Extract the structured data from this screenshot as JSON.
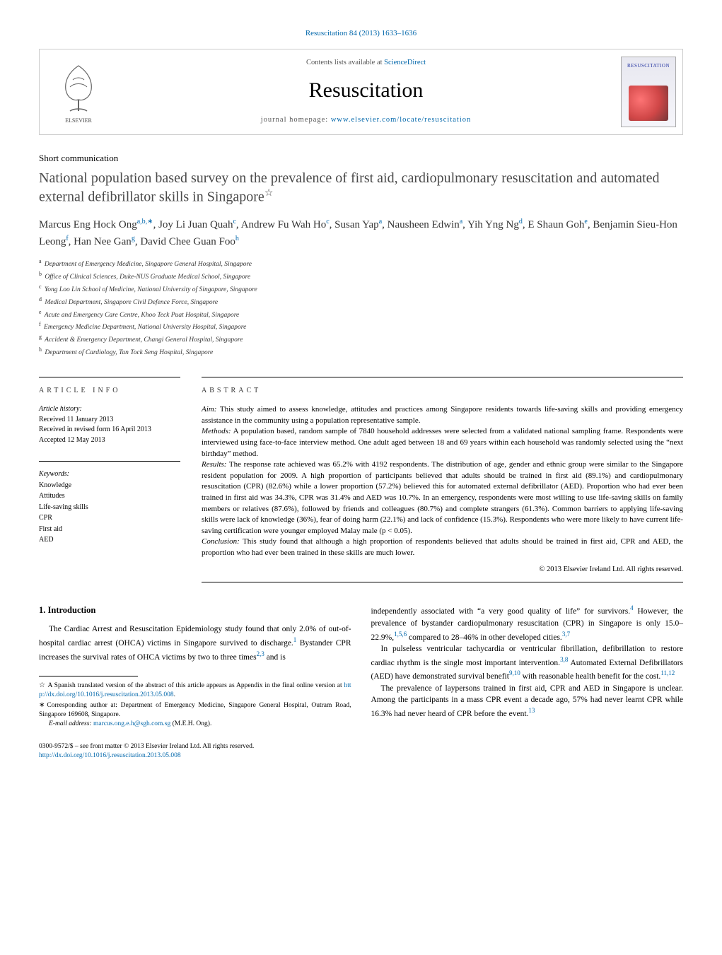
{
  "journal_ref": "Resuscitation 84 (2013) 1633–1636",
  "header": {
    "contents_prefix": "Contents lists available at ",
    "contents_link": "ScienceDirect",
    "journal_title": "Resuscitation",
    "homepage_prefix": "journal homepage: ",
    "homepage_link": "www.elsevier.com/locate/resuscitation",
    "cover_label": "RESUSCITATION"
  },
  "article_type": "Short communication",
  "title": "National population based survey on the prevalence of first aid, cardiopulmonary resuscitation and automated external defibrillator skills in Singapore",
  "title_star": "☆",
  "authors_html_parts": [
    {
      "name": "Marcus Eng Hock Ong",
      "sup": "a,b,∗"
    },
    {
      "name": "Joy Li Juan Quah",
      "sup": "c"
    },
    {
      "name": "Andrew Fu Wah Ho",
      "sup": "c"
    },
    {
      "name": "Susan Yap",
      "sup": "a"
    },
    {
      "name": "Nausheen Edwin",
      "sup": "a"
    },
    {
      "name": "Yih Yng Ng",
      "sup": "d"
    },
    {
      "name": "E Shaun Goh",
      "sup": "e"
    },
    {
      "name": "Benjamin Sieu-Hon Leong",
      "sup": "f"
    },
    {
      "name": "Han Nee Gan",
      "sup": "g"
    },
    {
      "name": "David Chee Guan Foo",
      "sup": "h"
    }
  ],
  "affiliations": [
    {
      "key": "a",
      "text": "Department of Emergency Medicine, Singapore General Hospital, Singapore"
    },
    {
      "key": "b",
      "text": "Office of Clinical Sciences, Duke-NUS Graduate Medical School, Singapore"
    },
    {
      "key": "c",
      "text": "Yong Loo Lin School of Medicine, National University of Singapore, Singapore"
    },
    {
      "key": "d",
      "text": "Medical Department, Singapore Civil Defence Force, Singapore"
    },
    {
      "key": "e",
      "text": "Acute and Emergency Care Centre, Khoo Teck Puat Hospital, Singapore"
    },
    {
      "key": "f",
      "text": "Emergency Medicine Department, National University Hospital, Singapore"
    },
    {
      "key": "g",
      "text": "Accident & Emergency Department, Changi General Hospital, Singapore"
    },
    {
      "key": "h",
      "text": "Department of Cardiology, Tan Tock Seng Hospital, Singapore"
    }
  ],
  "info": {
    "heading": "article info",
    "history_label": "Article history:",
    "received": "Received 11 January 2013",
    "revised": "Received in revised form 16 April 2013",
    "accepted": "Accepted 12 May 2013",
    "keywords_label": "Keywords:",
    "keywords": [
      "Knowledge",
      "Attitudes",
      "Life-saving skills",
      "CPR",
      "First aid",
      "AED"
    ]
  },
  "abstract": {
    "heading": "abstract",
    "paras": [
      {
        "label": "Aim:",
        "text": " This study aimed to assess knowledge, attitudes and practices among Singapore residents towards life-saving skills and providing emergency assistance in the community using a population representative sample."
      },
      {
        "label": "Methods:",
        "text": " A population based, random sample of 7840 household addresses were selected from a validated national sampling frame. Respondents were interviewed using face-to-face interview method. One adult aged between 18 and 69 years within each household was randomly selected using the “next birthday” method."
      },
      {
        "label": "Results:",
        "text": " The response rate achieved was 65.2% with 4192 respondents. The distribution of age, gender and ethnic group were similar to the Singapore resident population for 2009. A high proportion of participants believed that adults should be trained in first aid (89.1%) and cardiopulmonary resuscitation (CPR) (82.6%) while a lower proportion (57.2%) believed this for automated external defibrillator (AED). Proportion who had ever been trained in first aid was 34.3%, CPR was 31.4% and AED was 10.7%. In an emergency, respondents were most willing to use life-saving skills on family members or relatives (87.6%), followed by friends and colleagues (80.7%) and complete strangers (61.3%). Common barriers to applying life-saving skills were lack of knowledge (36%), fear of doing harm (22.1%) and lack of confidence (15.3%). Respondents who were more likely to have current life-saving certification were younger employed Malay male (p < 0.05)."
      },
      {
        "label": "Conclusion:",
        "text": " This study found that although a high proportion of respondents believed that adults should be trained in first aid, CPR and AED, the proportion who had ever been trained in these skills are much lower."
      }
    ],
    "copyright": "© 2013 Elsevier Ireland Ltd. All rights reserved."
  },
  "body": {
    "intro_heading": "1.  Introduction",
    "p1a": "The Cardiac Arrest and Resuscitation Epidemiology study found that only 2.0% of out-of-hospital cardiac arrest (OHCA) victims in Singapore survived to discharge.",
    "cite1": "1",
    "p1b": " Bystander CPR increases the survival rates of OHCA victims by two to three times",
    "cite23": "2,3",
    "p1c": " and is",
    "p2a": "independently associated with “a very good quality of life” for survivors.",
    "cite4": "4",
    "p2b": " However, the prevalence of bystander cardiopulmonary resuscitation (CPR) in Singapore is only 15.0–22.9%,",
    "cite156": "1,5,6",
    "p2c": " compared to 28–46% in other developed cities.",
    "cite37": "3,7",
    "p3a": "In pulseless ventricular tachycardia or ventricular fibrillation, defibrillation to restore cardiac rhythm is the single most important intervention.",
    "cite38": "3,8",
    "p3b": " Automated External Defibrillators (AED) have demonstrated survival benefit",
    "cite910": "9,10",
    "p3c": " with reasonable health benefit for the cost.",
    "cite1112": "11,12",
    "p4a": "The prevalence of laypersons trained in first aid, CPR and AED in Singapore is unclear. Among the participants in a mass CPR event a decade ago, 57% had never learnt CPR while 16.3% had never heard of CPR before the event.",
    "cite13": "13"
  },
  "footnotes": {
    "spanish_note_a": "A Spanish translated version of the abstract of this article appears as Appendix in the final online version at ",
    "spanish_doi": "http://dx.doi.org/10.1016/j.resuscitation.2013.05.008",
    "spanish_note_b": ".",
    "corresponding": "Corresponding author at: Department of Emergency Medicine, Singapore General Hospital, Outram Road, Singapore 169608, Singapore.",
    "email_label": "E-mail address: ",
    "email": "marcus.ong.e.h@sgh.com.sg",
    "email_suffix": " (M.E.H. Ong)."
  },
  "footer": {
    "issn_line": "0300-9572/$ – see front matter © 2013 Elsevier Ireland Ltd. All rights reserved.",
    "doi": "http://dx.doi.org/10.1016/j.resuscitation.2013.05.008"
  },
  "colors": {
    "link": "#0066aa",
    "text": "#000000",
    "title_grey": "#4a4a4a",
    "rule": "#000000",
    "box_border": "#cccccc"
  },
  "typography": {
    "body_pt": 11.5,
    "abstract_pt": 11,
    "title_pt": 20,
    "journal_title_pt": 30,
    "small_pt": 10
  }
}
